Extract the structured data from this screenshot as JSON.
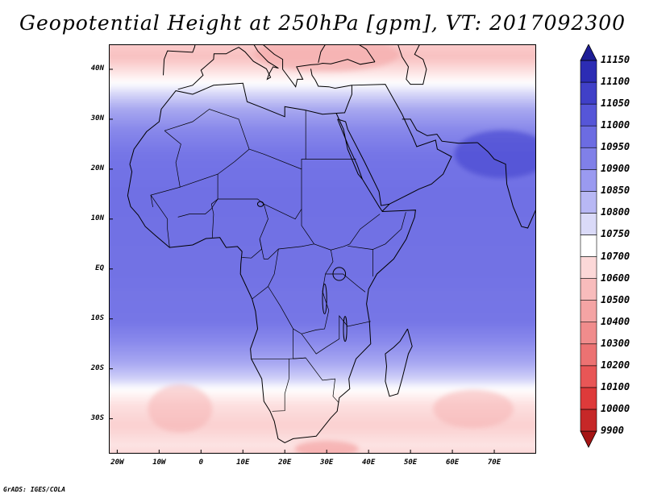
{
  "title": "Geopotential Height at 250hPa [gpm], VT: 2017092300",
  "footer": "GrADS: IGES/COLA",
  "chart_data": {
    "type": "heatmap",
    "title": "Geopotential Height at 250hPa [gpm], VT: 2017092300",
    "variable": "Geopotential Height",
    "level": "250hPa",
    "units": "gpm",
    "valid_time": "2017092300",
    "x_ticks": [
      "20W",
      "10W",
      "0",
      "10E",
      "20E",
      "30E",
      "40E",
      "50E",
      "60E",
      "70E"
    ],
    "y_ticks": [
      "40N",
      "30N",
      "20N",
      "10N",
      "EQ",
      "10S",
      "20S",
      "30S"
    ],
    "xlim": [
      -22,
      80
    ],
    "ylim": [
      -37,
      45
    ],
    "colorbar_levels": [
      9900,
      10000,
      10100,
      10200,
      10300,
      10400,
      10500,
      10600,
      10700,
      10750,
      10800,
      10850,
      10900,
      10950,
      11000,
      11050,
      11100,
      11150
    ],
    "colorbar_colors": [
      "#a51414",
      "#c62828",
      "#de3a3a",
      "#e85656",
      "#ec7272",
      "#f08c8c",
      "#f4a4a4",
      "#f8bcbc",
      "#fcd8d8",
      "#ffffff",
      "#dadaf8",
      "#b8b8f4",
      "#9a9af0",
      "#8080e8",
      "#6c6ce2",
      "#5656d8",
      "#4040c8",
      "#2c2cb4",
      "#1e1e96"
    ],
    "land_fill_color": "#7070e4"
  }
}
